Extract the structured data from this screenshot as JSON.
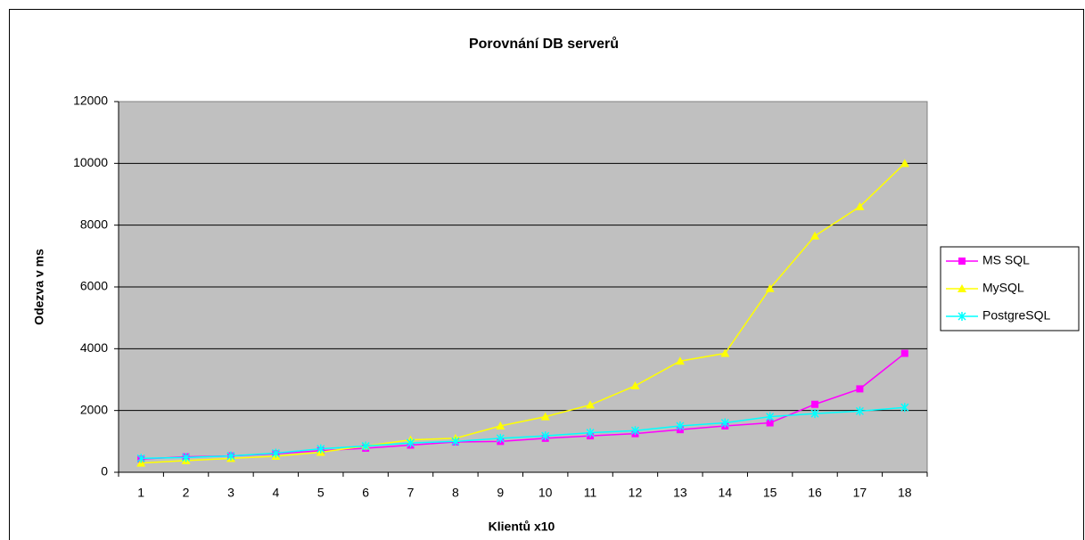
{
  "chart_data": {
    "type": "line",
    "title": "Porovnání DB serverů",
    "x_label": "Klientů  x10",
    "y_label": "Odezva v ms",
    "categories": [
      "1",
      "2",
      "3",
      "4",
      "5",
      "6",
      "7",
      "8",
      "9",
      "10",
      "11",
      "12",
      "13",
      "14",
      "15",
      "16",
      "17",
      "18"
    ],
    "series": [
      {
        "name": "MS SQL",
        "color": "#ff00ff",
        "marker": "square",
        "values": [
          430,
          500,
          530,
          600,
          700,
          780,
          880,
          980,
          1000,
          1100,
          1180,
          1250,
          1380,
          1500,
          1600,
          2200,
          2700,
          3850
        ]
      },
      {
        "name": "MySQL",
        "color": "#ffff00",
        "marker": "triangle",
        "values": [
          300,
          380,
          450,
          520,
          650,
          850,
          1050,
          1100,
          1500,
          1800,
          2180,
          2800,
          3600,
          3850,
          5950,
          7650,
          8600,
          10000
        ]
      },
      {
        "name": "PostgreSQL",
        "color": "#00ffff",
        "marker": "x",
        "values": [
          450,
          480,
          530,
          620,
          760,
          850,
          950,
          1000,
          1100,
          1180,
          1280,
          1350,
          1500,
          1600,
          1800,
          1900,
          1980,
          2100
        ]
      }
    ],
    "ylim": [
      0,
      12000
    ],
    "yticks": [
      0,
      2000,
      4000,
      6000,
      8000,
      10000,
      12000
    ],
    "grid": true,
    "legend": "right",
    "plot_background": "#c0c0c0"
  }
}
